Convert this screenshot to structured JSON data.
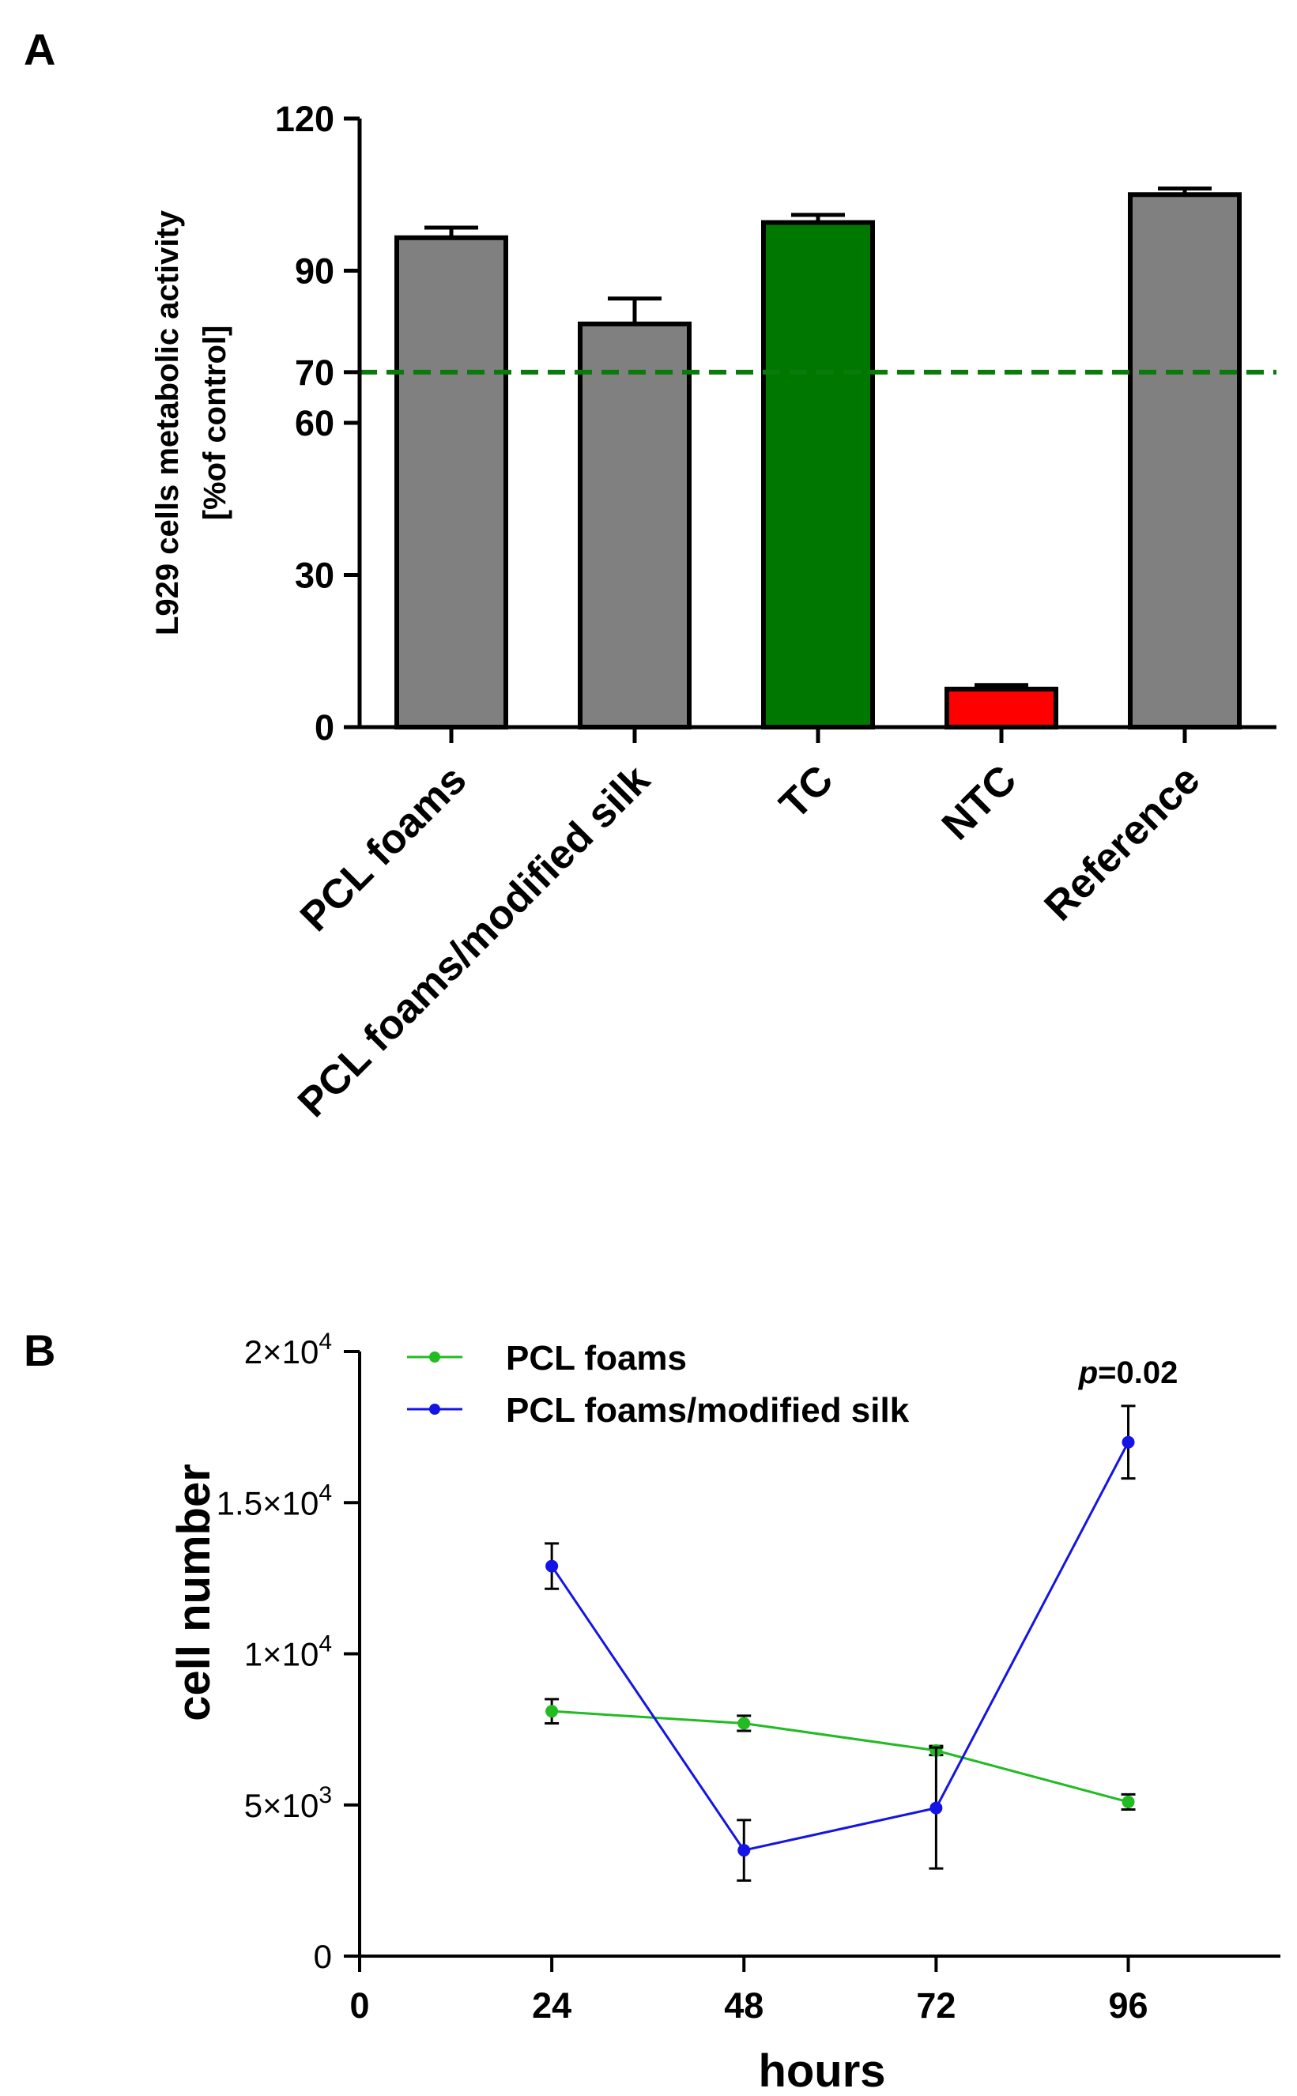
{
  "panels": {
    "a": {
      "letter": "A"
    },
    "b": {
      "letter": "B"
    }
  },
  "chart_data": [
    {
      "type": "bar",
      "panel": "A",
      "title": "",
      "ylabel": "L929 cells metabolic activity",
      "ylabel_line2": "[%of control]",
      "xlabel": "",
      "ylim": [
        0,
        120
      ],
      "yticks": [
        {
          "value": 0,
          "label": "0"
        },
        {
          "value": 30,
          "label": "30"
        },
        {
          "value": 60,
          "label": "60"
        },
        {
          "value": 70,
          "label": "70"
        },
        {
          "value": 90,
          "label": "90"
        },
        {
          "value": 120,
          "label": "120"
        }
      ],
      "categories": [
        "PCL foams",
        "PCL foams/modified silk",
        "TC",
        "NTC",
        "Reference"
      ],
      "values": [
        96.5,
        79.5,
        99.5,
        7.5,
        105
      ],
      "errors": [
        2,
        5,
        1.5,
        0.8,
        1.2
      ],
      "colors": [
        "#808080",
        "#808080",
        "#007800",
        "#ff0000",
        "#808080"
      ],
      "reference_line": {
        "value": 70,
        "color": "#0a7a0a",
        "style": "dashed"
      }
    },
    {
      "type": "line",
      "panel": "B",
      "title": "",
      "xlabel": "hours",
      "ylabel": "cell number",
      "xlim": [
        0,
        115
      ],
      "ylim": [
        0,
        20000
      ],
      "xticks": [
        {
          "value": 0,
          "label": "0"
        },
        {
          "value": 24,
          "label": "24"
        },
        {
          "value": 48,
          "label": "48"
        },
        {
          "value": 72,
          "label": "72"
        },
        {
          "value": 96,
          "label": "96"
        }
      ],
      "yticks": [
        {
          "value": 0,
          "base": "0",
          "exp": ""
        },
        {
          "value": 5000,
          "base": "5×10",
          "exp": "3"
        },
        {
          "value": 10000,
          "base": "1×10",
          "exp": "4"
        },
        {
          "value": 15000,
          "base": "1.5×10",
          "exp": "4"
        },
        {
          "value": 20000,
          "base": "2×10",
          "exp": "4"
        }
      ],
      "series": [
        {
          "name": "PCL foams",
          "color": "#22bb22",
          "x": [
            24,
            48,
            72,
            96
          ],
          "values": [
            8100,
            7700,
            6800,
            5100
          ],
          "errors": [
            400,
            250,
            150,
            250
          ]
        },
        {
          "name": "PCL foams/modified silk",
          "color": "#1414e6",
          "x": [
            24,
            48,
            72,
            96
          ],
          "values": [
            12900,
            3500,
            4900,
            17000
          ],
          "errors": [
            750,
            1000,
            2000,
            1200
          ]
        }
      ],
      "annotation": {
        "italic": "p",
        "text": "=0.02",
        "x": 96
      }
    }
  ]
}
